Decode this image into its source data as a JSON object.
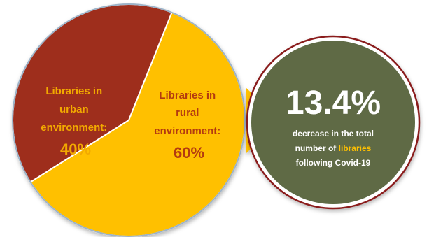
{
  "chart_data": {
    "type": "pie",
    "slices": [
      {
        "label_lines": [
          "Libraries in",
          "urban",
          "environment:"
        ],
        "value_label": "40%",
        "value": 40,
        "fill": "#9E2E1E",
        "text_color": "#F2A900"
      },
      {
        "label_lines": [
          "Libraries in",
          "rural",
          "environment:"
        ],
        "value_label": "60%",
        "value": 60,
        "fill": "#FFC000",
        "text_color": "#B33A10"
      }
    ],
    "outline_color": "#9DB3C8"
  },
  "callout": {
    "value": "13.4%",
    "caption_line1": "decrease in the total",
    "caption_line2_prefix": "number of ",
    "caption_line2_highlight": "libraries",
    "caption_line3": "following Covid-19",
    "fill": "#5E6B45",
    "ring_color": "#8A1C1C",
    "highlight_color": "#FFC000"
  }
}
